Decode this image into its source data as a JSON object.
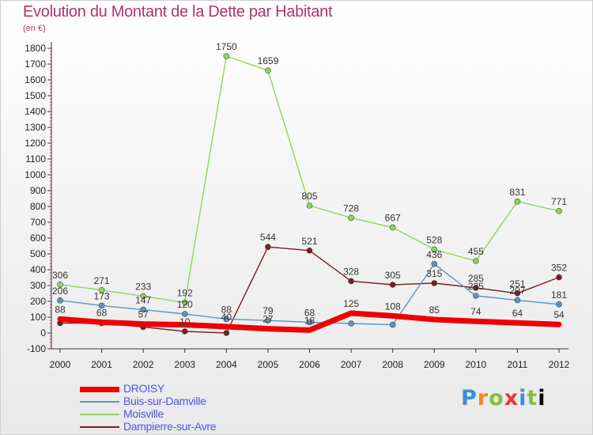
{
  "title": "Evolution du Montant de la Dette par Habitant",
  "subtitle": "(en €)",
  "logo": [
    "P",
    "r",
    "o",
    "x",
    "i",
    "t",
    "i"
  ],
  "chart_data": {
    "type": "line",
    "title": "Evolution du Montant de la Dette par Habitant",
    "subtitle": "(en €)",
    "xlabel": "",
    "ylabel": "",
    "x": [
      2000,
      2001,
      2002,
      2003,
      2004,
      2005,
      2006,
      2007,
      2008,
      2009,
      2010,
      2011,
      2012
    ],
    "ylim": [
      -100,
      1800
    ],
    "yticks": [
      -100,
      0,
      100,
      200,
      300,
      400,
      500,
      600,
      700,
      800,
      900,
      1000,
      1100,
      1200,
      1300,
      1400,
      1500,
      1600,
      1700,
      1800
    ],
    "grid": false,
    "legend_position": "bottom-left",
    "series": [
      {
        "name": "Dampierre-sur-Avre",
        "color": "#7a1c24",
        "width": 1.4,
        "values": [
          62,
          62,
          38,
          10,
          0,
          544,
          521,
          328,
          305,
          315,
          285,
          251,
          352
        ],
        "labels": [
          "",
          "",
          "",
          "10",
          "",
          "544",
          "521",
          "328",
          "305",
          "315",
          "285",
          "251",
          "352"
        ]
      },
      {
        "name": "Moisville",
        "color": "#8fd45d",
        "width": 1.4,
        "values": [
          306,
          271,
          233,
          192,
          1750,
          1659,
          805,
          728,
          667,
          528,
          455,
          831,
          771
        ],
        "labels": [
          "306",
          "271",
          "233",
          "192",
          "1750",
          "1659",
          "805",
          "728",
          "667",
          "528",
          "455",
          "831",
          "771"
        ]
      },
      {
        "name": "Buis-sur-Damville",
        "color": "#5b95c4",
        "width": 1.4,
        "values": [
          206,
          173,
          147,
          120,
          88,
          79,
          68,
          60,
          52,
          436,
          235,
          207,
          181
        ],
        "labels": [
          "206",
          "173",
          "147",
          "120",
          "88",
          "79",
          "68",
          "",
          "",
          "436",
          "235",
          "207",
          "181"
        ]
      },
      {
        "name": "DROISY",
        "color": "#ee0000",
        "width": 7,
        "values": [
          88,
          68,
          57,
          52,
          40,
          27,
          18,
          125,
          108,
          85,
          74,
          64,
          54
        ],
        "labels": [
          "88",
          "68",
          "57",
          "",
          "40",
          "27",
          "18",
          "125",
          "108",
          "85",
          "74",
          "64",
          "54"
        ]
      }
    ]
  },
  "legend": [
    {
      "label": "DROISY",
      "color": "#ee0000",
      "text_color": "#4e56e6",
      "thickness": 7
    },
    {
      "label": "Buis-sur-Damville",
      "color": "#5b95c4",
      "text_color": "#4e56e6",
      "thickness": 2
    },
    {
      "label": "Moisville",
      "color": "#8fd45d",
      "text_color": "#4e56e6",
      "thickness": 2
    },
    {
      "label": "Dampierre-sur-Avre",
      "color": "#7a1c24",
      "text_color": "#4e56e6",
      "thickness": 2
    }
  ]
}
